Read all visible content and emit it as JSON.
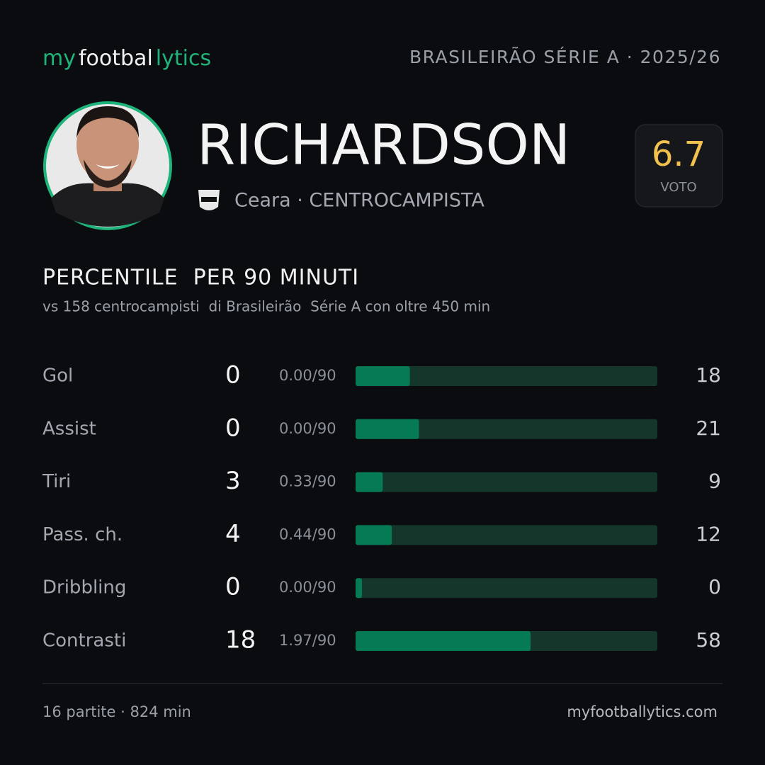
{
  "header": {
    "logo": [
      "my",
      "footbal",
      "lytics"
    ],
    "league": "BRASILEIRÃO SÉRIE A · 2025/26"
  },
  "player": {
    "name": "RICHARDSON",
    "team_role": "Ceara · CENTROCAMPISTA"
  },
  "rating": {
    "value": "6.7",
    "label": "VOTO"
  },
  "section": {
    "title": "PERCENTILE  PER 90 MINUTI",
    "subtitle": "vs 158 centrocampisti  di Brasileirão  Série A con oltre 450 min"
  },
  "rows": [
    {
      "label": "Gol",
      "count": 0,
      "per90": "0.00/90",
      "percentile": 18
    },
    {
      "label": "Assist",
      "count": 0,
      "per90": "0.00/90",
      "percentile": 21
    },
    {
      "label": "Tiri",
      "count": 3,
      "per90": "0.33/90",
      "percentile": 9
    },
    {
      "label": "Pass. ch.",
      "count": 4,
      "per90": "0.44/90",
      "percentile": 12
    },
    {
      "label": "Dribbling",
      "count": 0,
      "per90": "0.00/90",
      "percentile": 0
    },
    {
      "label": "Contrasti",
      "count": 18,
      "per90": "1.97/90",
      "percentile": 58
    }
  ],
  "footer": {
    "left": "16 partite · 824 min",
    "right": "myfootballytics.com"
  }
}
